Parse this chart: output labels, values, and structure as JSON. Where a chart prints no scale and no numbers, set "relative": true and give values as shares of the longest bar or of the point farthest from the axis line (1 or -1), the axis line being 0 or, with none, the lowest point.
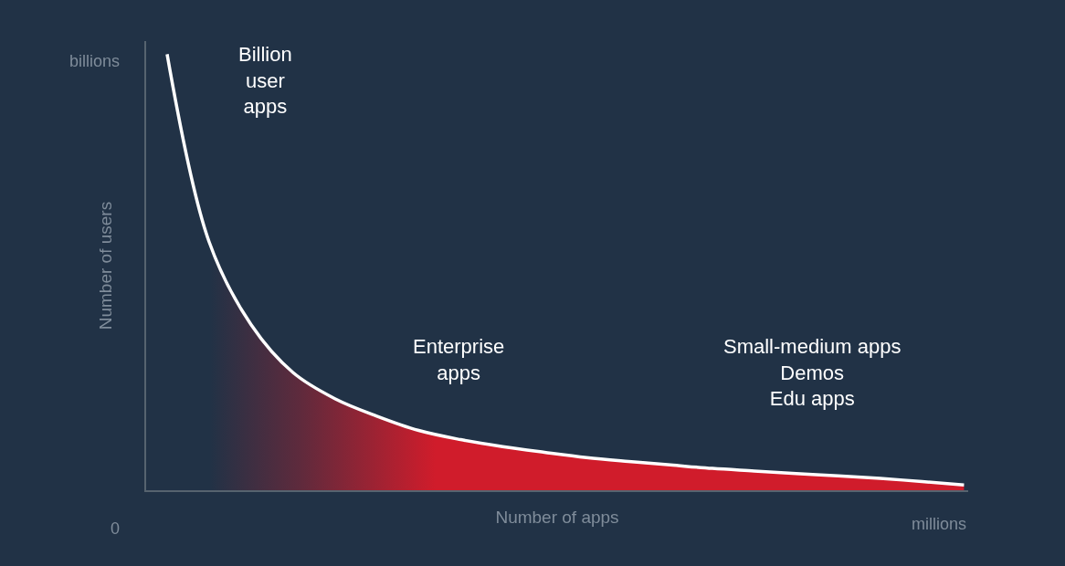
{
  "chart_data": {
    "type": "line",
    "relative": true,
    "xlabel": "Number of apps",
    "ylabel": "Number of users",
    "categories": [
      null,
      null,
      null,
      null,
      null,
      null,
      null,
      null,
      null,
      null,
      null,
      null,
      null,
      null,
      null,
      null,
      null,
      null,
      null,
      null
    ],
    "series": [
      {
        "color": "#ffffff",
        "values": [
          1.0,
          0.57,
          0.38,
          0.27,
          0.21,
          0.17,
          0.137,
          0.116,
          0.1,
          0.087,
          0.075,
          0.066,
          0.058,
          0.05,
          0.044,
          0.038,
          0.033,
          0.027,
          0.02,
          0.012
        ]
      },
      {
        "type": "area",
        "color": "#d01c2b",
        "values": [
          null,
          0.57,
          0.38,
          0.27,
          0.21,
          0.17,
          0.137,
          0.116,
          0.1,
          0.087,
          0.075,
          0.066,
          0.058,
          0.05,
          0.044,
          0.038,
          0.033,
          0.027,
          0.02,
          0.012
        ]
      }
    ],
    "annotations": [
      "0",
      "billions",
      "millions",
      "Billion\nuser\napps",
      "Enterprise\napps",
      "Small-medium apps\nDemos\nEdu apps"
    ],
    "marker": "none",
    "line_style": "solid"
  }
}
